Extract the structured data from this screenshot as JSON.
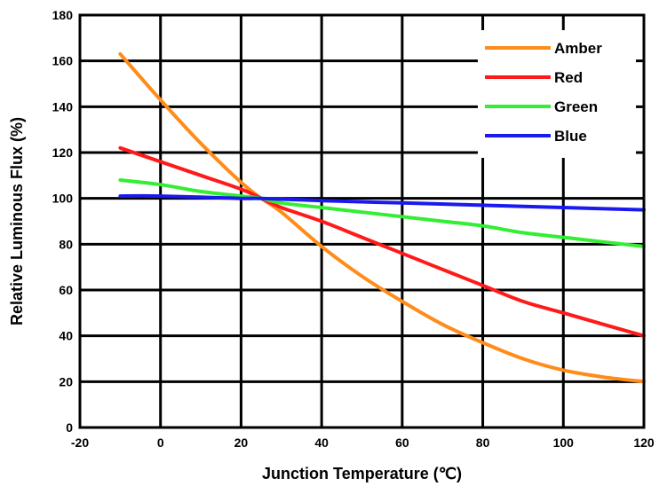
{
  "chart_data": {
    "type": "line",
    "title": "",
    "xlabel": "Junction Temperature (℃)",
    "ylabel": "Relative Luminous Flux (%)",
    "xlim": [
      -20,
      120
    ],
    "ylim": [
      0,
      180
    ],
    "x_ticks": [
      -20,
      0,
      20,
      40,
      60,
      80,
      100,
      120
    ],
    "y_ticks": [
      0,
      20,
      40,
      60,
      80,
      100,
      120,
      140,
      160,
      180
    ],
    "grid": true,
    "legend_position": "top-right",
    "series": [
      {
        "name": "Amber",
        "color": "#ff8c1a",
        "x": [
          -10,
          0,
          10,
          20,
          25,
          30,
          40,
          50,
          60,
          70,
          80,
          90,
          100,
          110,
          120
        ],
        "y": [
          163,
          143,
          124,
          107,
          100,
          94,
          79,
          66,
          55,
          45,
          37,
          30,
          25,
          22,
          20
        ]
      },
      {
        "name": "Red",
        "color": "#ff1a1a",
        "x": [
          -10,
          0,
          10,
          20,
          25,
          30,
          40,
          50,
          60,
          70,
          80,
          90,
          100,
          110,
          120
        ],
        "y": [
          122,
          116,
          110,
          104,
          100,
          96,
          90,
          83,
          76,
          69,
          62,
          55,
          50,
          45,
          40
        ]
      },
      {
        "name": "Green",
        "color": "#33ee33",
        "x": [
          -10,
          0,
          10,
          20,
          25,
          30,
          40,
          50,
          60,
          70,
          80,
          90,
          100,
          110,
          120
        ],
        "y": [
          108,
          106,
          103,
          101,
          100,
          98,
          96,
          94,
          92,
          90,
          88,
          85,
          83,
          81,
          79
        ]
      },
      {
        "name": "Blue",
        "color": "#1a1aee",
        "x": [
          -10,
          0,
          20,
          25,
          40,
          60,
          80,
          100,
          120
        ],
        "y": [
          101,
          101,
          100,
          100,
          99,
          98,
          97,
          96,
          95
        ]
      }
    ]
  }
}
